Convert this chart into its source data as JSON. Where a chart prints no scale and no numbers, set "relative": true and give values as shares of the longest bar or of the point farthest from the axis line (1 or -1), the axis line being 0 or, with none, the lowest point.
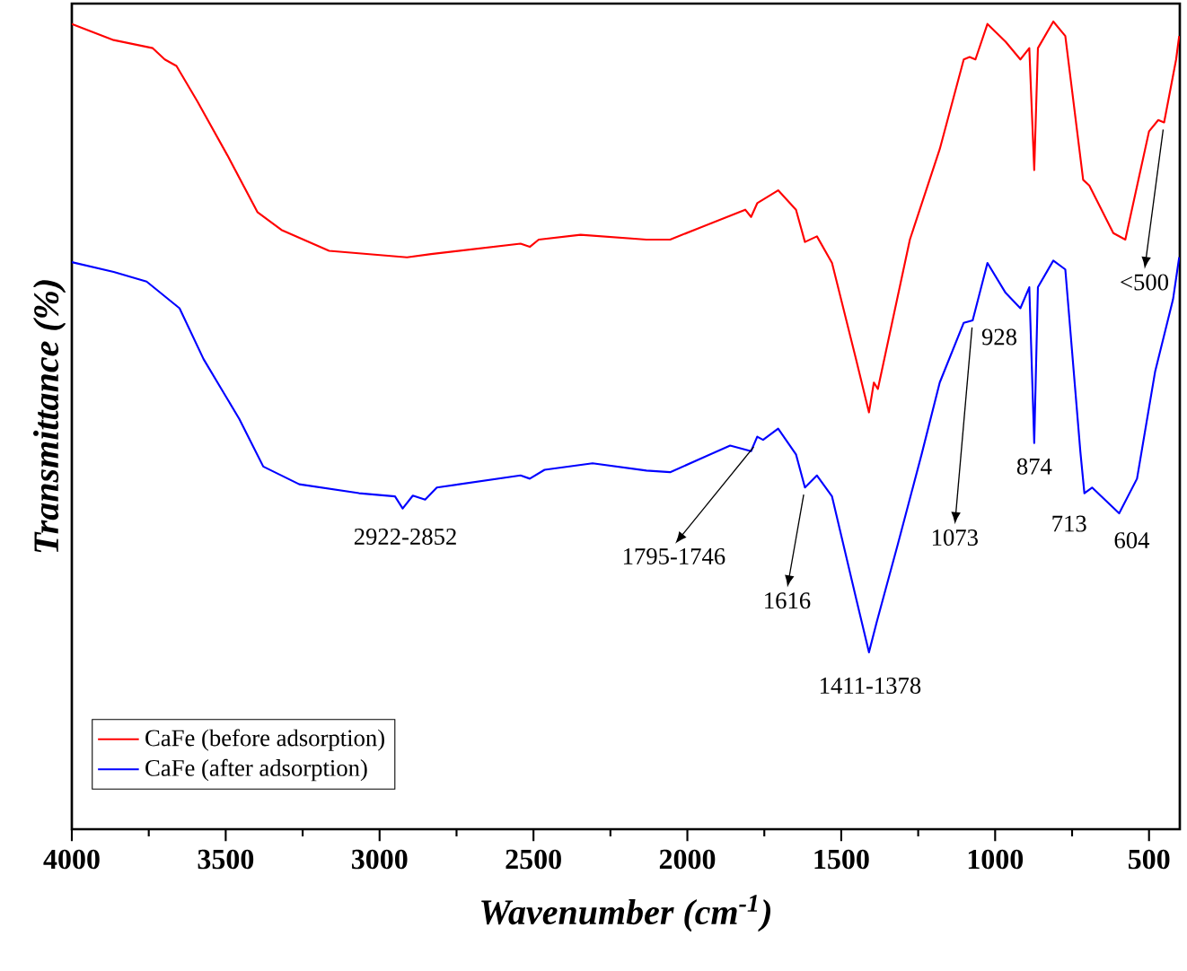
{
  "chart_data": {
    "type": "line",
    "relative": true,
    "xlabel": "Wavenumber (cm$^{-1}$)",
    "ylabel": "Transmittance (%)",
    "xlim": [
      4000,
      400
    ],
    "xticks": [
      4000,
      3500,
      3000,
      2500,
      2000,
      1500,
      1000,
      500
    ],
    "legend": "bottom left",
    "series": [
      {
        "name": "CaFe (before adsorption)",
        "color": "#ff0000",
        "x": [
          4000,
          3864,
          3737,
          3698,
          3660,
          3592,
          3494,
          3397,
          3319,
          3164,
          2911,
          2833,
          2542,
          2512,
          2483,
          2347,
          2133,
          2056,
          1812,
          1793,
          1773,
          1705,
          1647,
          1618,
          1579,
          1530,
          1452,
          1410,
          1394,
          1381,
          1277,
          1180,
          1102,
          1083,
          1064,
          1025,
          966,
          918,
          889,
          873,
          861,
          811,
          772,
          714,
          694,
          616,
          577,
          500,
          470,
          451,
          412,
          402
        ],
        "values": [
          0.997,
          0.977,
          0.967,
          0.953,
          0.945,
          0.901,
          0.834,
          0.764,
          0.742,
          0.716,
          0.708,
          0.712,
          0.725,
          0.721,
          0.73,
          0.736,
          0.73,
          0.73,
          0.767,
          0.758,
          0.775,
          0.791,
          0.767,
          0.727,
          0.734,
          0.701,
          0.582,
          0.516,
          0.553,
          0.545,
          0.73,
          0.842,
          0.953,
          0.956,
          0.953,
          0.997,
          0.975,
          0.953,
          0.967,
          0.816,
          0.967,
          1.0,
          0.982,
          0.804,
          0.797,
          0.738,
          0.73,
          0.864,
          0.878,
          0.875,
          0.953,
          0.982
        ]
      },
      {
        "name": "CaFe (after adsorption)",
        "color": "#0000ff",
        "x": [
          4000,
          3864,
          3757,
          3650,
          3572,
          3456,
          3378,
          3261,
          3067,
          2950,
          2925,
          2892,
          2852,
          2814,
          2542,
          2512,
          2464,
          2308,
          2133,
          2056,
          1861,
          1793,
          1773,
          1754,
          1705,
          1647,
          1618,
          1579,
          1530,
          1452,
          1410,
          1385,
          1316,
          1239,
          1180,
          1102,
          1073,
          1025,
          966,
          918,
          889,
          873,
          861,
          811,
          772,
          723,
          710,
          685,
          597,
          539,
          480,
          422,
          402
        ],
        "values": [
          0.702,
          0.69,
          0.678,
          0.645,
          0.582,
          0.508,
          0.449,
          0.427,
          0.416,
          0.412,
          0.397,
          0.413,
          0.408,
          0.423,
          0.438,
          0.434,
          0.445,
          0.453,
          0.444,
          0.442,
          0.475,
          0.468,
          0.486,
          0.482,
          0.496,
          0.464,
          0.423,
          0.438,
          0.412,
          0.286,
          0.219,
          0.256,
          0.353,
          0.464,
          0.553,
          0.627,
          0.63,
          0.701,
          0.664,
          0.645,
          0.671,
          0.478,
          0.671,
          0.704,
          0.693,
          0.467,
          0.416,
          0.423,
          0.391,
          0.434,
          0.567,
          0.656,
          0.708
        ]
      }
    ],
    "annotations": [
      {
        "text": "2922-2852",
        "x": 2887,
        "y": 0.4
      },
      {
        "text": "1795-1746",
        "x": 1770,
        "y": 0.48
      },
      {
        "text": "1616",
        "x": 1618,
        "y": 0.423
      },
      {
        "text": "1411-1378",
        "x": 1395,
        "y": 0.22
      },
      {
        "text": "1073",
        "x": 1073,
        "y": 0.63
      },
      {
        "text": "928",
        "x": 928,
        "y": 0.645
      },
      {
        "text": "874",
        "x": 873,
        "y": 0.478
      },
      {
        "text": "713",
        "x": 713,
        "y": 0.416
      },
      {
        "text": "604",
        "x": 597,
        "y": 0.391
      },
      {
        "text": "<500",
        "x": 451,
        "y": 0.875
      }
    ]
  }
}
